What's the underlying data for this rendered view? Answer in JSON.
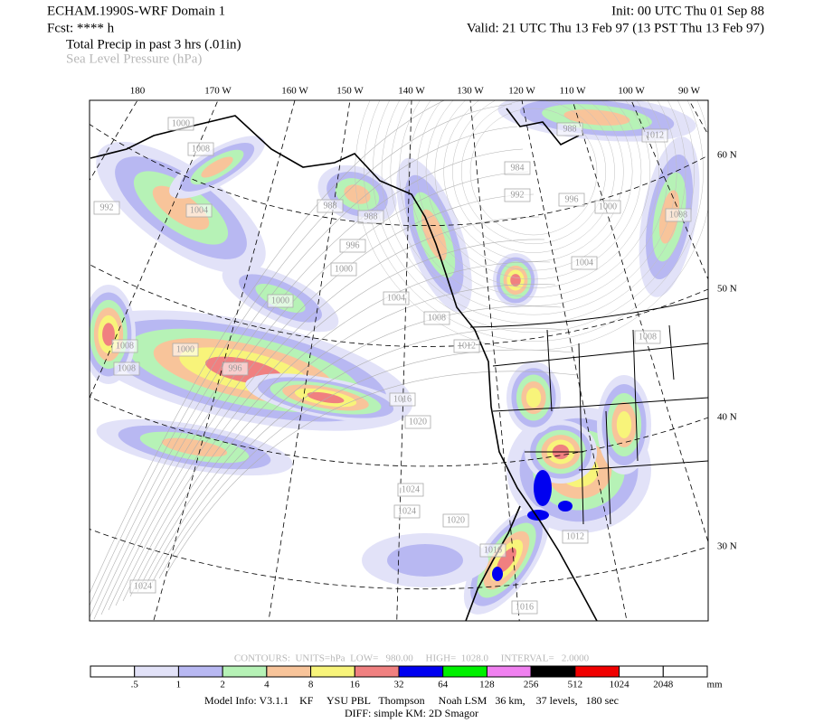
{
  "header": {
    "title": "ECHAM.1990S-WRF Domain 1",
    "init": "Init: 00 UTC Thu 01 Sep 88",
    "forecast": "Fcst: **** h",
    "valid": "Valid: 21 UTC Thu 13 Feb 97 (13 PST Thu 13 Feb 97)",
    "field_1": "Total Precip in past 3 hrs (.01in)",
    "field_2": "Sea Level Pressure (hPa)"
  },
  "map": {
    "longitude_labels": [
      "180",
      "170 W",
      "160 W",
      "150 W",
      "140 W",
      "130 W",
      "120 W",
      "110 W",
      "100 W",
      "90 W"
    ],
    "latitude_labels": [
      "60 N",
      "50 N",
      "40 N",
      "30 N"
    ],
    "isobar_labels": [
      "1000",
      "1008",
      "992",
      "1004",
      "988",
      "988",
      "996",
      "1000",
      "1000",
      "1004",
      "1008",
      "1012",
      "1008",
      "1000",
      "1008",
      "996",
      "1016",
      "1020",
      "1024",
      "1024",
      "1020",
      "1016",
      "1012",
      "1016",
      "1024",
      "984",
      "992",
      "996",
      "1000",
      "1004",
      "1008",
      "1012",
      "988",
      "1008"
    ]
  },
  "contour_info": "CONTOURS:  UNITS=hPa  LOW=   980.00     HIGH=  1028.0     INTERVAL=   2.0000",
  "colorbar": {
    "labels": [
      ".5",
      "1",
      "2",
      "4",
      "8",
      "16",
      "32",
      "64",
      "128",
      "256",
      "512",
      "1024",
      "2048"
    ],
    "unit": "mm",
    "colors": [
      "#ffffff",
      "#e2e2f8",
      "#b8b8f2",
      "#b6f2b6",
      "#f8c49a",
      "#f8f47a",
      "#f08080",
      "#0000f0",
      "#00f000",
      "#f080f0",
      "#000000",
      "#f00000",
      "#ffffff",
      "#ffffff"
    ]
  },
  "model_info": "Model Info: V3.1.1    KF     YSU PBL   Thompson     Noah LSM   36 km,    37 levels,   180 sec",
  "diff_info": "DIFF: simple KM: 2D Smagor"
}
